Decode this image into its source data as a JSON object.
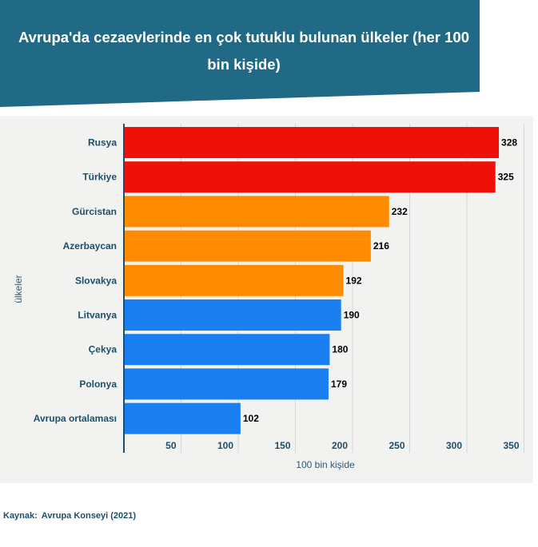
{
  "header": {
    "title": "Avrupa'da cezaevlerinde en çok tutuklu bulunan ülkeler (her 100 bin kişide)",
    "background_color": "#206a86"
  },
  "source": {
    "label": "Kaynak:",
    "text": "Avrupa Konseyi (2021)"
  },
  "chart_data": {
    "type": "bar",
    "orientation": "horizontal",
    "categories": [
      "Rusya",
      "Türkiye",
      "Gürcistan",
      "Azerbaycan",
      "Slovakya",
      "Litvanya",
      "Çekya",
      "Polonya",
      "Avrupa ortalaması"
    ],
    "values": [
      328,
      325,
      232,
      216,
      192,
      190,
      180,
      179,
      102
    ],
    "colors": [
      "#ee1109",
      "#ee1109",
      "#ff8c00",
      "#ff8c00",
      "#ff8c00",
      "#1a7ff0",
      "#1a7ff0",
      "#1a7ff0",
      "#1a7ff0"
    ],
    "xlabel": "100 bin kişide",
    "ylabel": "ülkeler",
    "xlim": [
      0,
      350
    ],
    "xticks": [
      50,
      100,
      150,
      200,
      250,
      300,
      350
    ],
    "grid": true,
    "data_labels": true
  }
}
